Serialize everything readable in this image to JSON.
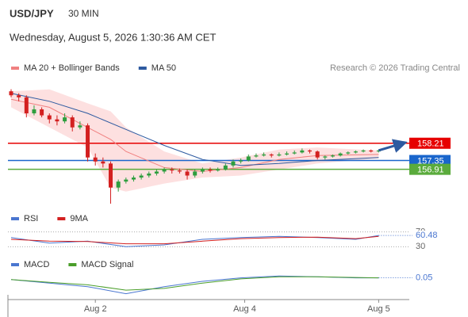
{
  "header": {
    "symbol": "USD/JPY",
    "interval": "30 MIN",
    "datetime": "Wednesday, August 5, 2026 1:30:36 AM CET",
    "credit": "Research © 2026 Trading Central"
  },
  "chart_data": [
    {
      "type": "candlestick",
      "xlim": [
        0,
        52
      ],
      "ylim": [
        155.0,
        161.4
      ],
      "up_color": "#2e9e3e",
      "down_color": "#d32020",
      "x": [
        0,
        1,
        2,
        3,
        4,
        5,
        6,
        7,
        8,
        9,
        10,
        11,
        12,
        13,
        14,
        15,
        16,
        17,
        18,
        19,
        20,
        21,
        22,
        23,
        24,
        25,
        26,
        27,
        28,
        29,
        30,
        31,
        32,
        33,
        34,
        35,
        36,
        37,
        38,
        39,
        40,
        41,
        42,
        43,
        44,
        45,
        46,
        47,
        48
      ],
      "open": [
        160.8,
        160.6,
        160.5,
        159.7,
        159.9,
        159.6,
        159.4,
        159.3,
        159.5,
        159.0,
        159.1,
        157.5,
        157.3,
        157.2,
        156.0,
        156.3,
        156.4,
        156.5,
        156.6,
        156.7,
        156.8,
        156.9,
        156.85,
        156.8,
        156.6,
        156.8,
        156.9,
        156.85,
        156.9,
        157.1,
        157.3,
        157.35,
        157.55,
        157.6,
        157.65,
        157.6,
        157.65,
        157.7,
        157.75,
        157.85,
        157.8,
        157.5,
        157.55,
        157.6,
        157.7,
        157.75,
        157.8,
        157.85,
        157.8
      ],
      "high": [
        160.9,
        160.7,
        160.6,
        160.1,
        160.0,
        159.7,
        159.6,
        159.7,
        159.6,
        159.3,
        159.2,
        157.7,
        157.5,
        157.3,
        156.4,
        156.5,
        156.6,
        156.7,
        156.8,
        156.9,
        157.0,
        157.0,
        156.95,
        156.9,
        156.9,
        157.0,
        157.0,
        157.0,
        157.2,
        157.4,
        157.45,
        157.65,
        157.7,
        157.75,
        157.7,
        157.75,
        157.8,
        157.85,
        157.95,
        157.9,
        157.85,
        157.6,
        157.65,
        157.75,
        157.8,
        157.85,
        157.9,
        157.9,
        157.9
      ],
      "low": [
        160.5,
        160.3,
        159.5,
        159.6,
        159.5,
        159.2,
        159.1,
        159.2,
        158.8,
        158.9,
        157.3,
        157.1,
        157.0,
        155.2,
        155.8,
        156.2,
        156.3,
        156.4,
        156.5,
        156.6,
        156.7,
        156.7,
        156.7,
        156.4,
        156.5,
        156.7,
        156.75,
        156.8,
        156.85,
        157.0,
        157.2,
        157.3,
        157.5,
        157.55,
        157.5,
        157.55,
        157.6,
        157.65,
        157.7,
        157.7,
        157.4,
        157.4,
        157.5,
        157.55,
        157.65,
        157.7,
        157.75,
        157.75,
        157.75
      ],
      "close": [
        160.6,
        160.5,
        159.7,
        159.9,
        159.6,
        159.4,
        159.3,
        159.5,
        159.0,
        159.1,
        157.5,
        157.3,
        157.2,
        156.0,
        156.3,
        156.4,
        156.5,
        156.6,
        156.7,
        156.8,
        156.9,
        156.85,
        156.8,
        156.6,
        156.8,
        156.9,
        156.85,
        156.9,
        157.1,
        157.3,
        157.35,
        157.55,
        157.6,
        157.65,
        157.6,
        157.65,
        157.7,
        157.75,
        157.85,
        157.8,
        157.5,
        157.55,
        157.6,
        157.7,
        157.75,
        157.8,
        157.85,
        157.8,
        157.85
      ],
      "overlays": [
        {
          "name": "MA 20 + Bollinger Bands",
          "color": "#f08080",
          "band_color": "#fde0e0",
          "x": [
            0,
            5,
            10,
            13,
            15,
            20,
            25,
            30,
            35,
            40,
            48
          ],
          "values": [
            160.4,
            160.0,
            159.0,
            158.4,
            157.8,
            157.0,
            156.8,
            157.0,
            157.4,
            157.6,
            157.65
          ],
          "upper": [
            160.8,
            160.9,
            160.2,
            159.8,
            159.0,
            157.8,
            157.2,
            157.5,
            157.9,
            158.0,
            157.85
          ],
          "lower": [
            160.0,
            159.0,
            158.0,
            156.0,
            155.8,
            156.2,
            156.5,
            156.6,
            156.9,
            157.2,
            157.45
          ]
        },
        {
          "name": "MA 50",
          "color": "#2d5aa0",
          "x": [
            0,
            5,
            10,
            15,
            20,
            25,
            30,
            35,
            40,
            48
          ],
          "values": [
            160.7,
            160.3,
            159.7,
            158.9,
            158.1,
            157.4,
            157.1,
            157.2,
            157.35,
            157.5
          ]
        }
      ],
      "levels": [
        {
          "value": 158.21,
          "color": "#e60000"
        },
        {
          "value": 157.35,
          "color": "#1a66cc"
        },
        {
          "value": 156.91,
          "color": "#5aab3c"
        }
      ]
    },
    {
      "type": "line",
      "xlim": [
        0,
        52
      ],
      "ylim": [
        20,
        80
      ],
      "yticks": [
        30,
        70
      ],
      "x": [
        0,
        5,
        10,
        15,
        20,
        25,
        30,
        35,
        40,
        45,
        48
      ],
      "series": [
        {
          "name": "RSI",
          "color": "#4a76d0",
          "values": [
            55,
            40,
            45,
            30,
            35,
            50,
            55,
            58,
            55,
            50,
            60.48
          ]
        },
        {
          "name": "9MA",
          "color": "#d32020",
          "values": [
            50,
            45,
            44,
            38,
            38,
            45,
            52,
            55,
            56,
            52,
            58
          ]
        }
      ]
    },
    {
      "type": "line",
      "xlim": [
        0,
        52
      ],
      "ylim": [
        -0.5,
        0.4
      ],
      "xticks": [
        {
          "value": 11,
          "label": "Aug 2"
        },
        {
          "value": 30.5,
          "label": "Aug 4"
        },
        {
          "value": 48,
          "label": "Aug 5"
        }
      ],
      "x": [
        0,
        5,
        10,
        15,
        20,
        25,
        30,
        35,
        40,
        45,
        48
      ],
      "series": [
        {
          "name": "MACD",
          "color": "#4a76d0",
          "values": [
            0.0,
            -0.1,
            -0.2,
            -0.4,
            -0.2,
            -0.05,
            0.05,
            0.1,
            0.08,
            0.05,
            0.05
          ]
        },
        {
          "name": "MACD Signal",
          "color": "#4a9e2a",
          "values": [
            0.0,
            -0.08,
            -0.15,
            -0.3,
            -0.25,
            -0.1,
            0.02,
            0.08,
            0.08,
            0.06,
            0.05
          ]
        }
      ]
    }
  ]
}
